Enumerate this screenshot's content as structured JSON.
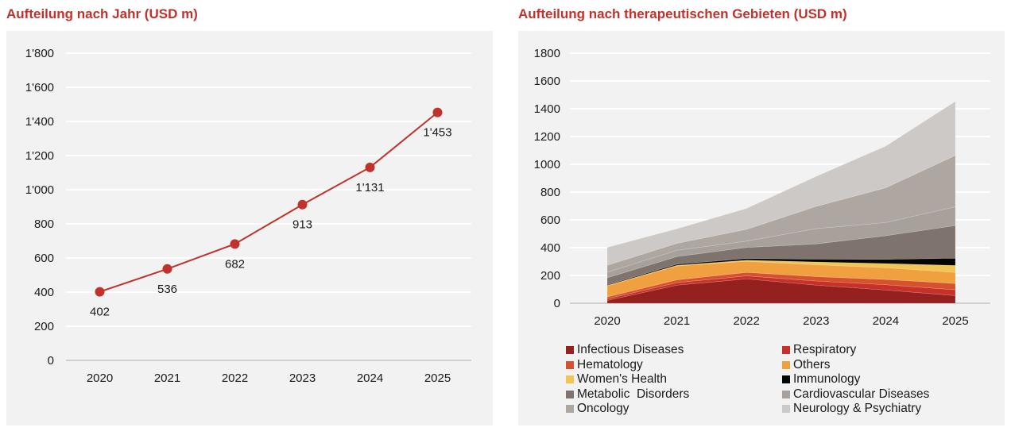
{
  "chart_data": [
    {
      "type": "line",
      "title": "Aufteilung nach Jahr (USD m)",
      "xlabel": "",
      "ylabel": "",
      "categories": [
        "2020",
        "2021",
        "2022",
        "2023",
        "2024",
        "2025"
      ],
      "values": [
        402,
        536,
        682,
        913,
        1131,
        1453
      ],
      "data_labels": [
        "402",
        "536",
        "682",
        "913",
        "1'131",
        "1'453"
      ],
      "ylim": [
        0,
        1800
      ],
      "yticks": [
        0,
        200,
        400,
        600,
        800,
        1000,
        1200,
        1400,
        1600,
        1800
      ],
      "ytick_labels": [
        "0",
        "200",
        "400",
        "600",
        "800",
        "1'000",
        "1'200",
        "1'400",
        "1'600",
        "1'800"
      ],
      "grid": true,
      "legend": "none",
      "color": "#c0322b"
    },
    {
      "type": "area",
      "stacked": true,
      "title": "Aufteilung nach therapeutischen Gebieten (USD m)",
      "xlabel": "",
      "ylabel": "",
      "categories": [
        "2020",
        "2021",
        "2022",
        "2023",
        "2024",
        "2025"
      ],
      "ylim": [
        0,
        1800
      ],
      "yticks": [
        0,
        200,
        400,
        600,
        800,
        1000,
        1200,
        1400,
        1600,
        1800
      ],
      "ytick_labels": [
        "0",
        "200",
        "400",
        "600",
        "800",
        "1000",
        "1200",
        "1400",
        "1600",
        "1800"
      ],
      "grid": true,
      "legend": "bottom",
      "series": [
        {
          "name": "Infectious Diseases",
          "color": "#94211e",
          "values": [
            20,
            130,
            175,
            130,
            95,
            55
          ]
        },
        {
          "name": "Respiratory",
          "color": "#c8302a",
          "values": [
            12,
            18,
            22,
            30,
            38,
            42
          ]
        },
        {
          "name": "Hematology",
          "color": "#d6522e",
          "values": [
            13,
            20,
            25,
            32,
            38,
            45
          ]
        },
        {
          "name": "Others",
          "color": "#f0a03e",
          "values": [
            80,
            100,
            80,
            85,
            85,
            80
          ]
        },
        {
          "name": "Women's Health",
          "color": "#f2c453",
          "values": [
            3,
            5,
            8,
            20,
            30,
            50
          ]
        },
        {
          "name": "Immunology",
          "color": "#050505",
          "values": [
            5,
            8,
            12,
            20,
            30,
            52
          ]
        },
        {
          "name": "Metabolic  Disorders",
          "color": "#7f746d",
          "values": [
            50,
            55,
            80,
            110,
            170,
            235
          ]
        },
        {
          "name": "Cardiovascular Diseases",
          "color": "#a7a09b",
          "values": [
            40,
            45,
            45,
            110,
            95,
            135
          ]
        },
        {
          "name": "Oncology",
          "color": "#aea6a1",
          "values": [
            50,
            50,
            85,
            160,
            250,
            370
          ]
        },
        {
          "name": "Neurology & Psychiatry",
          "color": "#cdc9c6",
          "values": [
            129,
            105,
            150,
            216,
            300,
            389
          ]
        }
      ]
    }
  ]
}
